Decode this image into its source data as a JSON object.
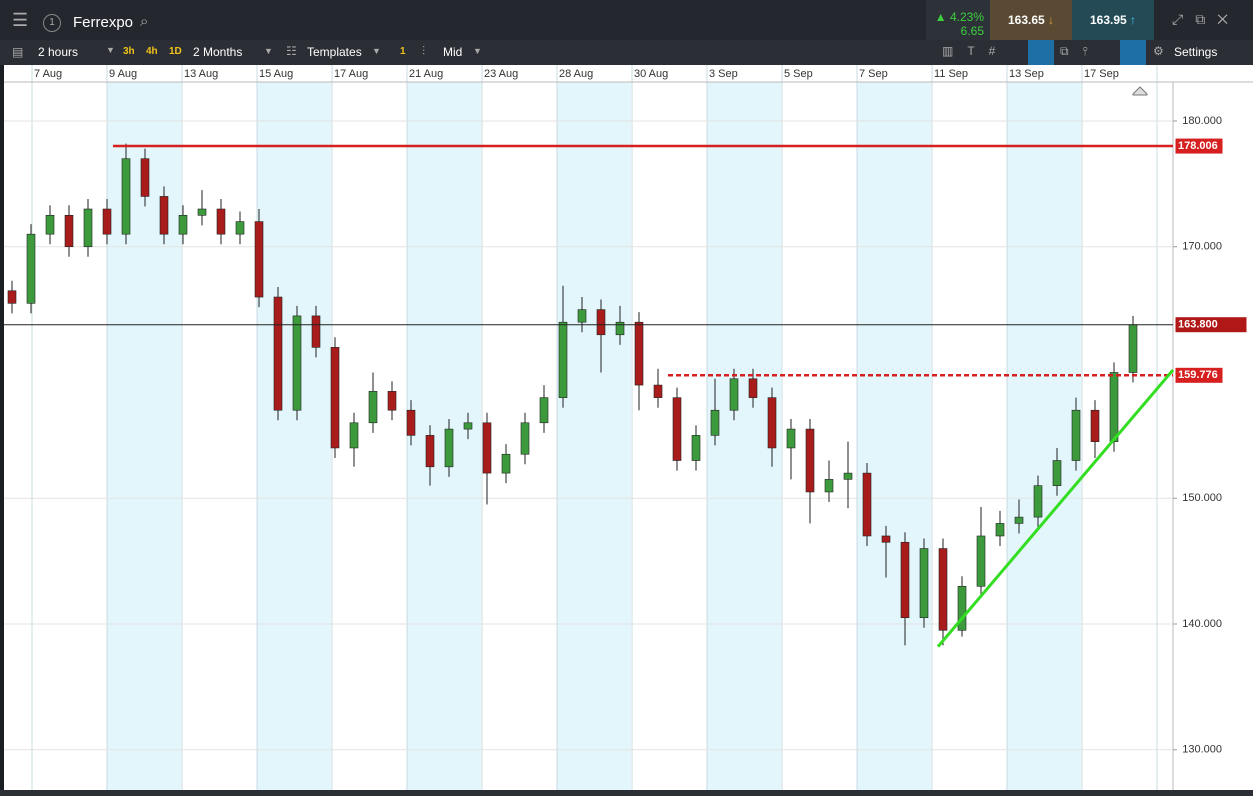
{
  "toolbar": {
    "instrument": "Ferrexpo",
    "change_pct": "4.23%",
    "change_abs": "6.65",
    "sell": "163.65",
    "buy": "163.95",
    "interval": "2 hours",
    "quick_intervals": [
      "3h",
      "4h",
      "1D"
    ],
    "range": "2 Months",
    "templates": "Templates",
    "count": "1",
    "price_type": "Mid",
    "settings": "Settings"
  },
  "chart_data": {
    "type": "candlestick",
    "date_labels": [
      "7 Aug",
      "9 Aug",
      "13 Aug",
      "15 Aug",
      "17 Aug",
      "21 Aug",
      "23 Aug",
      "28 Aug",
      "30 Aug",
      "3 Sep",
      "5 Sep",
      "7 Sep",
      "11 Sep",
      "13 Sep",
      "17 Sep"
    ],
    "open": [
      166.5,
      165.5,
      171,
      172.5,
      170,
      173,
      171,
      177,
      174,
      171,
      172.5,
      173,
      171,
      172,
      166,
      157,
      164.5,
      162,
      154,
      156,
      158.5,
      157,
      155,
      152.5,
      155.5,
      156,
      152,
      153.5,
      156,
      158,
      164,
      165,
      163,
      164,
      159,
      158,
      153,
      155,
      157,
      159.5,
      158,
      154,
      155.5,
      150.5,
      151.5,
      152,
      147,
      146.5,
      140.5,
      146,
      139.5,
      143,
      147,
      148,
      148.5,
      151,
      153,
      157,
      154.5,
      160
    ],
    "high": [
      167.3,
      171.8,
      173.3,
      173.3,
      173.8,
      173.8,
      178.2,
      177.8,
      174.8,
      173.3,
      174.5,
      173.8,
      172.8,
      173,
      166.8,
      165.3,
      165.3,
      162.8,
      156.8,
      160,
      159.3,
      157.8,
      155.8,
      156.3,
      156.8,
      156.8,
      154.3,
      156.8,
      159,
      166.9,
      166,
      165.8,
      165.3,
      164.8,
      160.3,
      158.8,
      155.8,
      159.5,
      160.3,
      160.3,
      158.8,
      156.3,
      156.3,
      153,
      154.5,
      152.8,
      147.8,
      147.3,
      146.8,
      146.8,
      143.8,
      149.3,
      149,
      149.9,
      151.8,
      154,
      158,
      157.8,
      160.8,
      164.5
    ],
    "low": [
      164.7,
      164.7,
      170.2,
      169.2,
      169.2,
      170.2,
      170.2,
      173.2,
      170.2,
      170.2,
      171.7,
      170.2,
      170.2,
      165.2,
      156.2,
      156.2,
      161.2,
      153.2,
      152.5,
      155.2,
      156.2,
      154.2,
      151,
      151.7,
      154.7,
      149.5,
      151.2,
      152.7,
      155.2,
      157.2,
      163.2,
      160,
      162.2,
      157,
      157.2,
      152.2,
      152.2,
      154.2,
      156.2,
      157.2,
      152.5,
      151.5,
      148,
      149.7,
      149.2,
      146.2,
      143.7,
      138.3,
      139.7,
      138.3,
      139,
      142.2,
      146.2,
      147.2,
      147.7,
      150.2,
      152.2,
      153.2,
      153.7,
      159.2
    ],
    "close": [
      165.5,
      171,
      172.5,
      170,
      173,
      171,
      177,
      174,
      171,
      172.5,
      173,
      171,
      172,
      166,
      157,
      164.5,
      162,
      154,
      156,
      158.5,
      157,
      155,
      152.5,
      155.5,
      156,
      152,
      153.5,
      156,
      158,
      164,
      165,
      163,
      164,
      159,
      158,
      153,
      155,
      157,
      159.5,
      158,
      154,
      155.5,
      150.5,
      151.5,
      152,
      147,
      146.5,
      140.5,
      146,
      139.5,
      143,
      147,
      148,
      148.5,
      151,
      153,
      157,
      154.5,
      160,
      163.8
    ],
    "up_color": "#3c9a3c",
    "down_color": "#a81c1c",
    "ylim": [
      126.8,
      183.1
    ],
    "yticks": [
      {
        "value": 130,
        "label": "130.000"
      },
      {
        "value": 140,
        "label": "140.000"
      },
      {
        "value": 150,
        "label": "150.000"
      },
      {
        "value": 170,
        "label": "170.000"
      },
      {
        "value": 180,
        "label": "180.000"
      }
    ],
    "grid": true,
    "levels": [
      {
        "value": 178.006,
        "label": "178.006",
        "color": "#d61f1f",
        "style": "solid"
      },
      {
        "value": 163.8,
        "label": "163.800",
        "color": "#222222",
        "style": "thin"
      },
      {
        "value": 159.776,
        "label": "159.776",
        "color": "#d61f1f",
        "style": "dashed"
      }
    ],
    "trendline": {
      "values": [
        138.2,
        160.2
      ],
      "color": "#33dd22"
    }
  }
}
